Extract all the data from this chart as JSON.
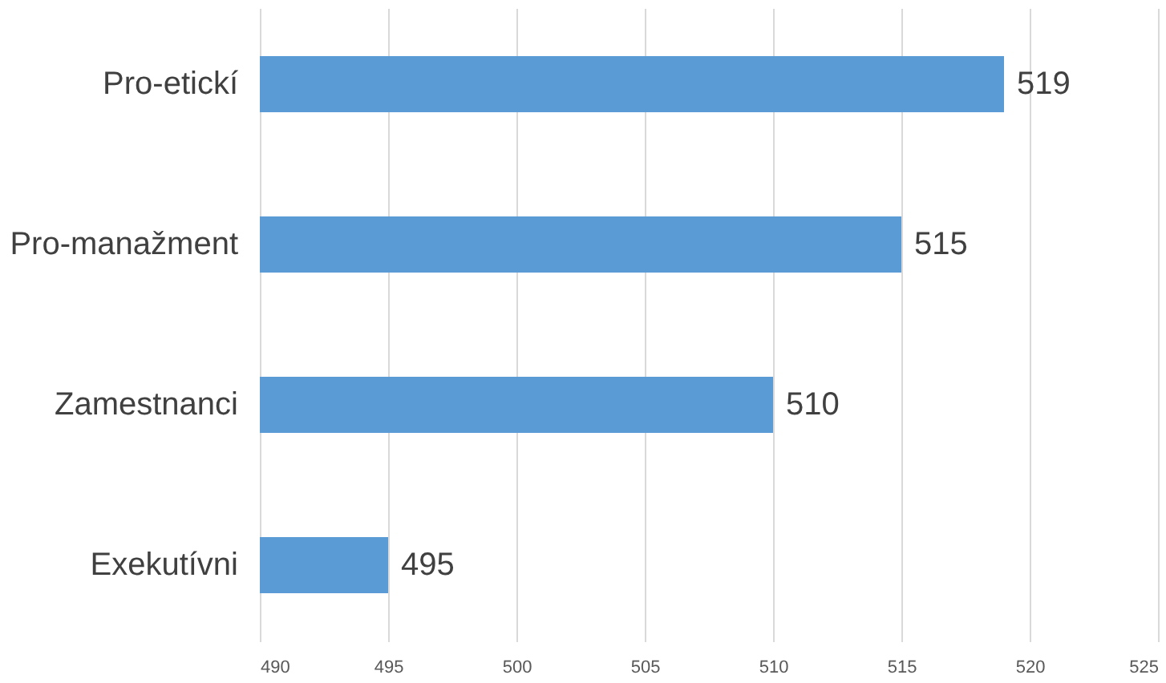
{
  "chart_data": {
    "type": "bar",
    "orientation": "horizontal",
    "categories": [
      "Pro-etickí",
      "Pro-manažment",
      "Zamestnanci",
      "Exekutívni"
    ],
    "values": [
      519,
      515,
      510,
      495
    ],
    "color": "#5b9bd5",
    "xlim": [
      490,
      525
    ],
    "xticks": [
      490,
      495,
      500,
      505,
      510,
      515,
      520,
      525
    ],
    "grid": "x",
    "data_labels": true
  }
}
